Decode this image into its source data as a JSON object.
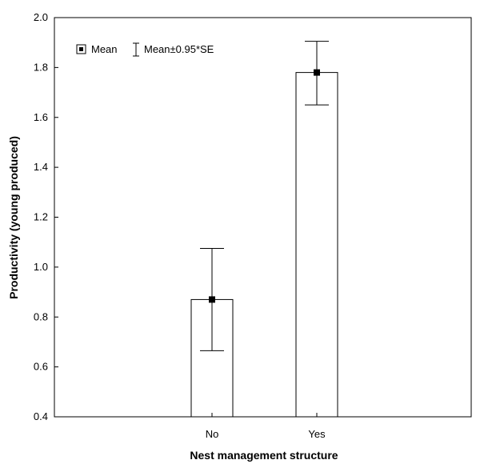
{
  "chart_data": {
    "type": "bar",
    "categories": [
      "No",
      "Yes"
    ],
    "series": [
      {
        "values": [
          0.87,
          1.78
        ],
        "error_low": [
          0.665,
          1.65
        ],
        "error_high": [
          1.075,
          1.905
        ]
      }
    ],
    "xlabel": "Nest management structure",
    "ylabel": "Productivity (young produced)",
    "ylim": [
      0.4,
      2.0
    ],
    "yticks": [
      "0.4",
      "0.6",
      "0.8",
      "1.0",
      "1.2",
      "1.4",
      "1.6",
      "1.8",
      "2.0"
    ],
    "legend": {
      "placement": "top-left",
      "mean_label": "Mean",
      "error_label": "Mean±0.95*SE"
    },
    "grid": false
  }
}
